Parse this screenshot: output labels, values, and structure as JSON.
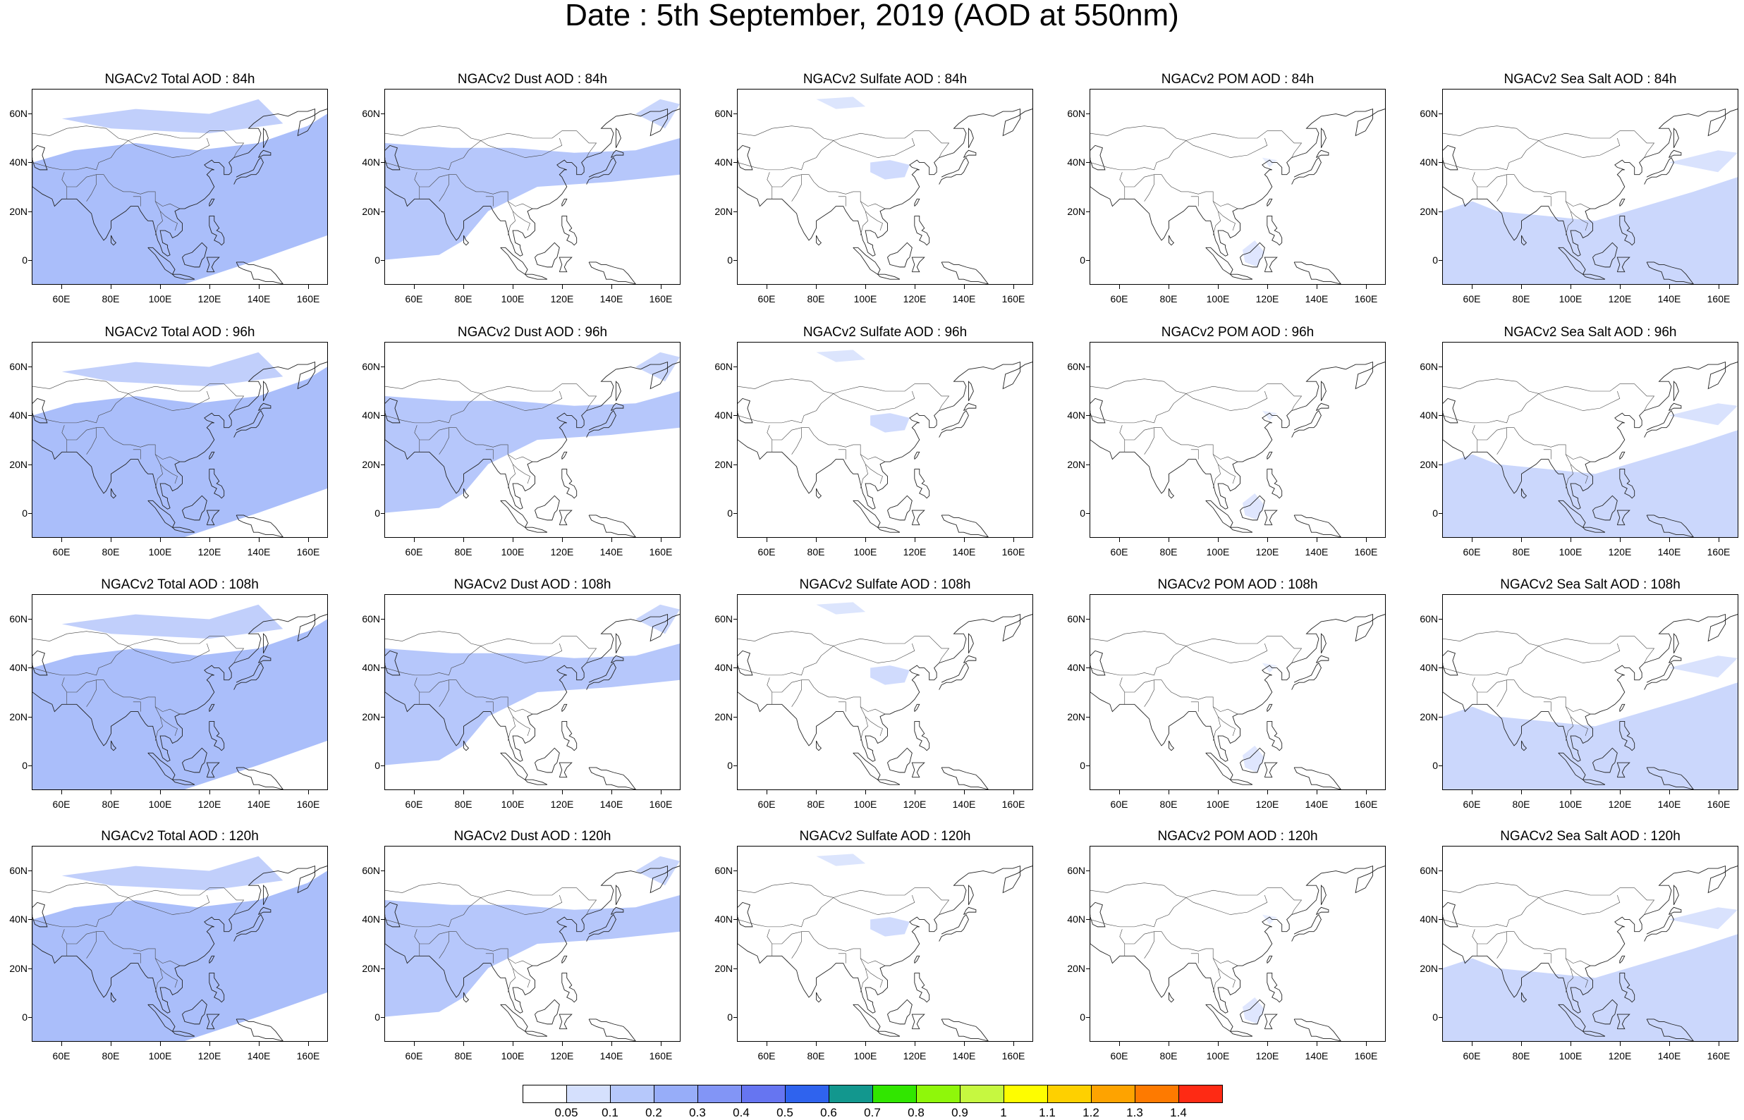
{
  "title": "Date : 5th September, 2019 (AOD at 550nm)",
  "columns": [
    {
      "id": "total",
      "color": "#8ea8f8",
      "label_prefix": "NGACv2 Total AOD"
    },
    {
      "id": "dust",
      "color": "#9db4fa",
      "label_prefix": "NGACv2 Dust AOD"
    },
    {
      "id": "sulfate",
      "color": "#c0cffc",
      "label_prefix": "NGACv2 Sulfate AOD"
    },
    {
      "id": "pom",
      "color": "#d4defd",
      "label_prefix": "NGACv2 POM AOD"
    },
    {
      "id": "seasalt",
      "color": "#b9cafb",
      "label_prefix": "NGACv2 Sea Salt AOD"
    }
  ],
  "panels": [
    [
      "NGACv2 Total AOD : 84h",
      "NGACv2 Dust AOD : 84h",
      "NGACv2 Sulfate AOD : 84h",
      "NGACv2 POM AOD : 84h",
      "NGACv2 Sea Salt AOD : 84h"
    ],
    [
      "NGACv2 Total AOD : 96h",
      "NGACv2 Dust AOD : 96h",
      "NGACv2 Sulfate AOD : 96h",
      "NGACv2 POM AOD : 96h",
      "NGACv2 Sea Salt AOD : 96h"
    ],
    [
      "NGACv2 Total AOD : 108h",
      "NGACv2 Dust AOD : 108h",
      "NGACv2 Sulfate AOD : 108h",
      "NGACv2 POM AOD : 108h",
      "NGACv2 Sea Salt AOD : 108h"
    ],
    [
      "NGACv2 Total AOD : 120h",
      "NGACv2 Dust AOD : 120h",
      "NGACv2 Sulfate AOD : 120h",
      "NGACv2 POM AOD : 120h",
      "NGACv2 Sea Salt  AOD : 120h"
    ]
  ],
  "lat_labels": [
    "60N",
    "40N",
    "20N",
    "0"
  ],
  "lon_labels": [
    "60E",
    "80E",
    "100E",
    "120E",
    "140E",
    "160E"
  ],
  "colorbar": {
    "colors": [
      "#ffffff",
      "#d5e0fd",
      "#b6c8fb",
      "#97adf9",
      "#8295f6",
      "#6675f1",
      "#2f63ee",
      "#12978e",
      "#31e600",
      "#8ff70a",
      "#c6f840",
      "#fefd00",
      "#fed000",
      "#fea300",
      "#fe7a00",
      "#fe2a14"
    ],
    "labels": [
      "0.05",
      "0.1",
      "0.2",
      "0.3",
      "0.4",
      "0.5",
      "0.6",
      "0.7",
      "0.8",
      "0.9",
      "1",
      "1.1",
      "1.2",
      "1.3",
      "1.4"
    ]
  }
}
